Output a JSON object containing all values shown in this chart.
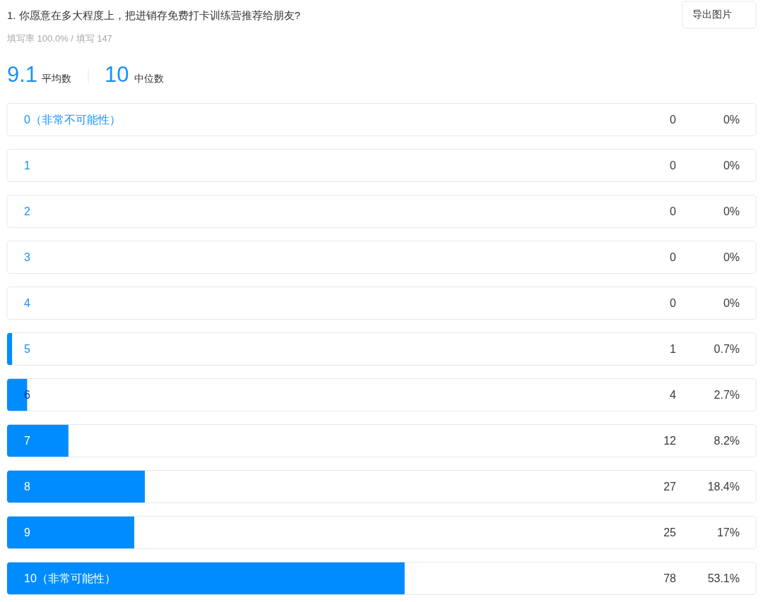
{
  "chart_data": {
    "type": "bar",
    "orientation": "horizontal",
    "title": "1. 你愿意在多大程度上，把进销存免费打卡训练营推荐给朋友?",
    "subtitle": "填写率 100.0% / 填写 147",
    "categories": [
      "0（非常不可能性）",
      "1",
      "2",
      "3",
      "4",
      "5",
      "6",
      "7",
      "8",
      "9",
      "10（非常可能性）"
    ],
    "values": [
      0,
      0,
      0,
      0,
      0,
      0.7,
      2.7,
      8.2,
      18.4,
      17,
      53.1
    ],
    "color": "#008cff",
    "value_labels": [
      "0%",
      "0%",
      "0%",
      "0%",
      "0%",
      "0.7%",
      "2.7%",
      "8.2%",
      "18.4%",
      "17%",
      "53.1%"
    ],
    "xlim": [
      0,
      100
    ],
    "tick_labels": "y",
    "annotations": [
      "9.1",
      "平均数",
      "10",
      "中位数",
      "导出图片",
      "0",
      "0",
      "0",
      "0",
      "0",
      "1",
      "4",
      "12",
      "27",
      "25",
      "78"
    ]
  }
}
